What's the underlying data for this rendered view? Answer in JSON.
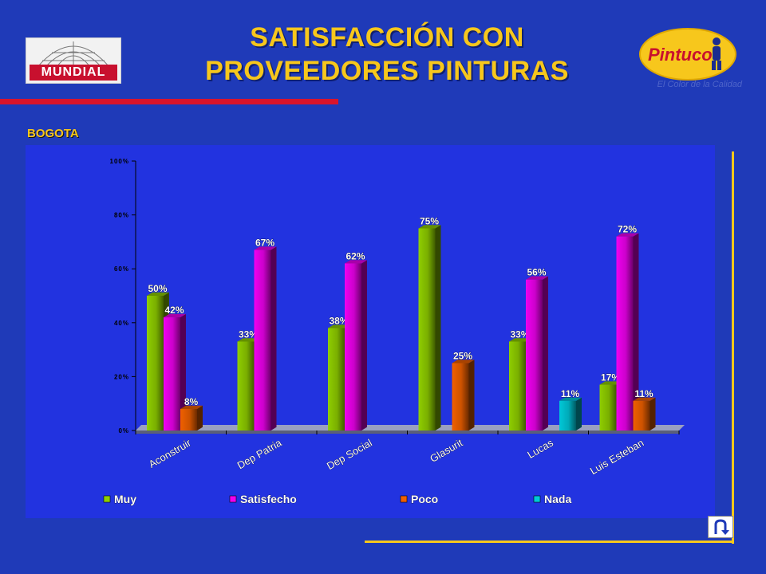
{
  "title_line1": "SATISFACCIÓN CON",
  "title_line2": "PROVEEDORES  PINTURAS",
  "logo_left_text": "MUNDIAL",
  "logo_right_text": "Pintuco",
  "logo_right_tagline": "El Color de la Calidad",
  "region_label": "BOGOTA",
  "colors": {
    "muy": "#8fce00",
    "satisfecho": "#f000f0",
    "poco": "#f06000",
    "nada": "#00c8d8"
  },
  "icons": {
    "back": "u-turn-arrow-icon"
  },
  "chart_data": {
    "type": "bar",
    "categories": [
      "Aconstruir",
      "Dep Patria",
      "Dep Social",
      "Glasurit",
      "Lucas",
      "Luis Esteban"
    ],
    "y_ticks": [
      "0%",
      "20%",
      "40%",
      "60%",
      "80%",
      "100%"
    ],
    "ylim": [
      0,
      100
    ],
    "legend_placement": "bottom",
    "series": [
      {
        "name": "Muy",
        "values": [
          50,
          33,
          38,
          75,
          33,
          17
        ],
        "labels": [
          "50%",
          "33%",
          "38%",
          "75%",
          "33%",
          "17%"
        ]
      },
      {
        "name": "Satisfecho",
        "values": [
          42,
          67,
          62,
          0,
          56,
          72
        ],
        "labels": [
          "42%",
          "67%",
          "62%",
          "",
          "56%",
          "72%"
        ]
      },
      {
        "name": "Poco",
        "values": [
          8,
          0,
          0,
          25,
          0,
          11
        ],
        "labels": [
          "8%",
          "",
          "",
          "25%",
          "",
          "11%"
        ]
      },
      {
        "name": "Nada",
        "values": [
          0,
          0,
          0,
          0,
          11,
          0
        ],
        "labels": [
          "",
          "",
          "",
          "",
          "11%",
          ""
        ]
      }
    ]
  }
}
